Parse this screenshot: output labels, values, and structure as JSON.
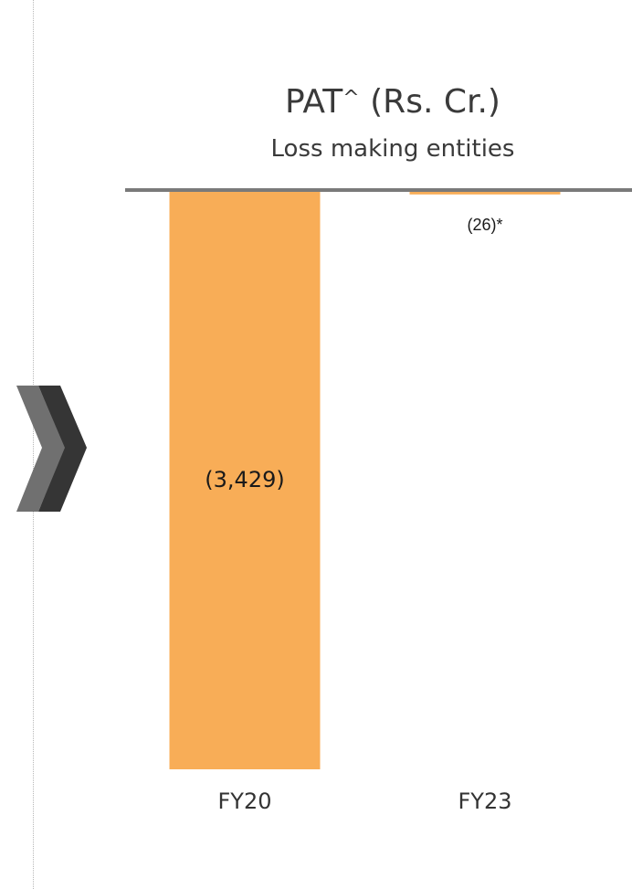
{
  "colors": {
    "bar": "#F8AD57",
    "axis": "#7a7a7a",
    "chevron_front": "#707070",
    "chevron_back": "#353535"
  },
  "decor": {
    "icon": "double-chevron-right-icon"
  },
  "chart_data": {
    "type": "bar",
    "title": "PAT",
    "title_sup": "^",
    "title_unit": "(Rs. Cr.)",
    "subtitle": "Loss making entities",
    "categories": [
      "FY20",
      "FY23"
    ],
    "values": [
      -3429,
      -26
    ],
    "data_labels": [
      "(3,429)",
      "(26)*"
    ],
    "xlabel": "",
    "ylabel": "",
    "ylim": [
      -3429,
      0
    ],
    "grid": false,
    "legend": "none"
  }
}
